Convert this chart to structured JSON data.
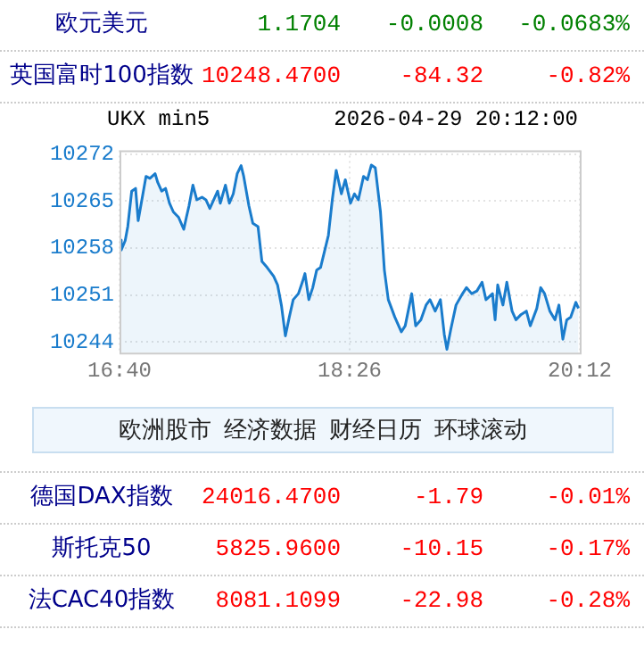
{
  "chart_data": [
    {
      "type": "other",
      "annotations": [
        "欧元美元",
        "1.1704",
        "-0.0008",
        "-0.0683%"
      ],
      "color": "#008000"
    },
    {
      "type": "other",
      "annotations": [
        "英国富时100指数",
        "10248.4700",
        "-84.32",
        "-0.82%"
      ],
      "color": "#ff0000"
    },
    {
      "type": "area",
      "title": "UKX min5",
      "subtitle": "2026-04-29 20:12:00",
      "color": "#1a7ccc",
      "marker": "none",
      "grid": true,
      "xlim": [
        16.6667,
        20.2
      ],
      "xticks": [
        {
          "value": 16.6667,
          "label": "16:40"
        },
        {
          "value": 18.4333,
          "label": "18:26"
        },
        {
          "value": 20.2,
          "label": "20:12"
        }
      ],
      "ylim": [
        10242.4,
        10272.6
      ],
      "yticks": [
        10244,
        10251,
        10258,
        10265,
        10272
      ],
      "x": [
        16.67,
        16.68,
        16.71,
        16.73,
        16.76,
        16.79,
        16.81,
        16.85,
        16.87,
        16.9,
        16.94,
        16.96,
        16.99,
        17.02,
        17.05,
        17.08,
        17.12,
        17.16,
        17.18,
        17.2,
        17.23,
        17.26,
        17.3,
        17.33,
        17.36,
        17.39,
        17.42,
        17.44,
        17.48,
        17.51,
        17.54,
        17.57,
        17.6,
        17.62,
        17.66,
        17.69,
        17.73,
        17.76,
        17.8,
        17.85,
        17.88,
        17.91,
        17.94,
        17.97,
        18.0,
        18.04,
        18.07,
        18.09,
        18.12,
        18.15,
        18.18,
        18.21,
        18.27,
        18.3,
        18.33,
        18.37,
        18.4,
        18.44,
        18.47,
        18.5,
        18.54,
        18.57,
        18.6,
        18.63,
        18.67,
        18.7,
        18.73,
        18.78,
        18.83,
        18.86,
        18.91,
        18.94,
        18.98,
        19.02,
        19.05,
        19.09,
        19.13,
        19.16,
        19.18,
        19.21,
        19.25,
        19.3,
        19.33,
        19.37,
        19.41,
        19.45,
        19.48,
        19.53,
        19.55,
        19.57,
        19.61,
        19.64,
        19.68,
        19.71,
        19.75,
        19.79,
        19.82,
        19.87,
        19.9,
        19.93,
        19.97,
        20.01,
        20.04,
        20.07,
        20.1,
        20.13,
        20.17,
        20.19
      ],
      "values": [
        10259.2,
        10257.7,
        10259.1,
        10261.2,
        10266.5,
        10266.9,
        10262.1,
        10266.5,
        10268.7,
        10268.4,
        10269.1,
        10267.8,
        10266.5,
        10266.9,
        10264.7,
        10263.4,
        10262.6,
        10260.8,
        10262.6,
        10264.3,
        10267.4,
        10265.2,
        10265.6,
        10265.2,
        10263.9,
        10265.2,
        10266.5,
        10264.7,
        10267.4,
        10264.7,
        10266.1,
        10269.1,
        10270.3,
        10268.7,
        10264.3,
        10261.7,
        10261.2,
        10256.0,
        10255.1,
        10253.8,
        10252.5,
        10249.4,
        10244.9,
        10247.7,
        10250.3,
        10251.2,
        10252.9,
        10254.2,
        10250.3,
        10252.1,
        10254.7,
        10255.1,
        10259.9,
        10265.2,
        10269.6,
        10266.1,
        10268.2,
        10264.7,
        10266.1,
        10265.2,
        10268.7,
        10268.2,
        10270.4,
        10270.0,
        10263.4,
        10254.7,
        10250.3,
        10247.7,
        10245.5,
        10246.4,
        10251.2,
        10246.4,
        10247.3,
        10249.5,
        10250.3,
        10248.6,
        10250.3,
        10245.1,
        10242.9,
        10245.9,
        10249.5,
        10251.2,
        10252.1,
        10251.2,
        10251.6,
        10252.9,
        10250.3,
        10251.2,
        10247.3,
        10252.5,
        10249.5,
        10252.9,
        10248.6,
        10247.3,
        10248.1,
        10248.6,
        10246.4,
        10249.0,
        10252.1,
        10251.2,
        10248.6,
        10247.3,
        10249.5,
        10244.4,
        10247.3,
        10247.7,
        10249.9,
        10249.0
      ]
    },
    {
      "type": "other",
      "annotations": [
        "欧洲股市",
        "经济数据",
        "财经日历",
        "环球滚动"
      ]
    },
    {
      "type": "other",
      "annotations": [
        "德国DAX指数",
        "24016.4700",
        "-1.79",
        "-0.01%"
      ],
      "color": "#ff0000"
    },
    {
      "type": "other",
      "annotations": [
        "斯托克50",
        "5825.9600",
        "-10.15",
        "-0.17%"
      ],
      "color": "#ff0000"
    },
    {
      "type": "other",
      "annotations": [
        "法CAC40指数",
        "8081.1099",
        "-22.98",
        "-0.28%"
      ],
      "color": "#ff0000"
    }
  ]
}
